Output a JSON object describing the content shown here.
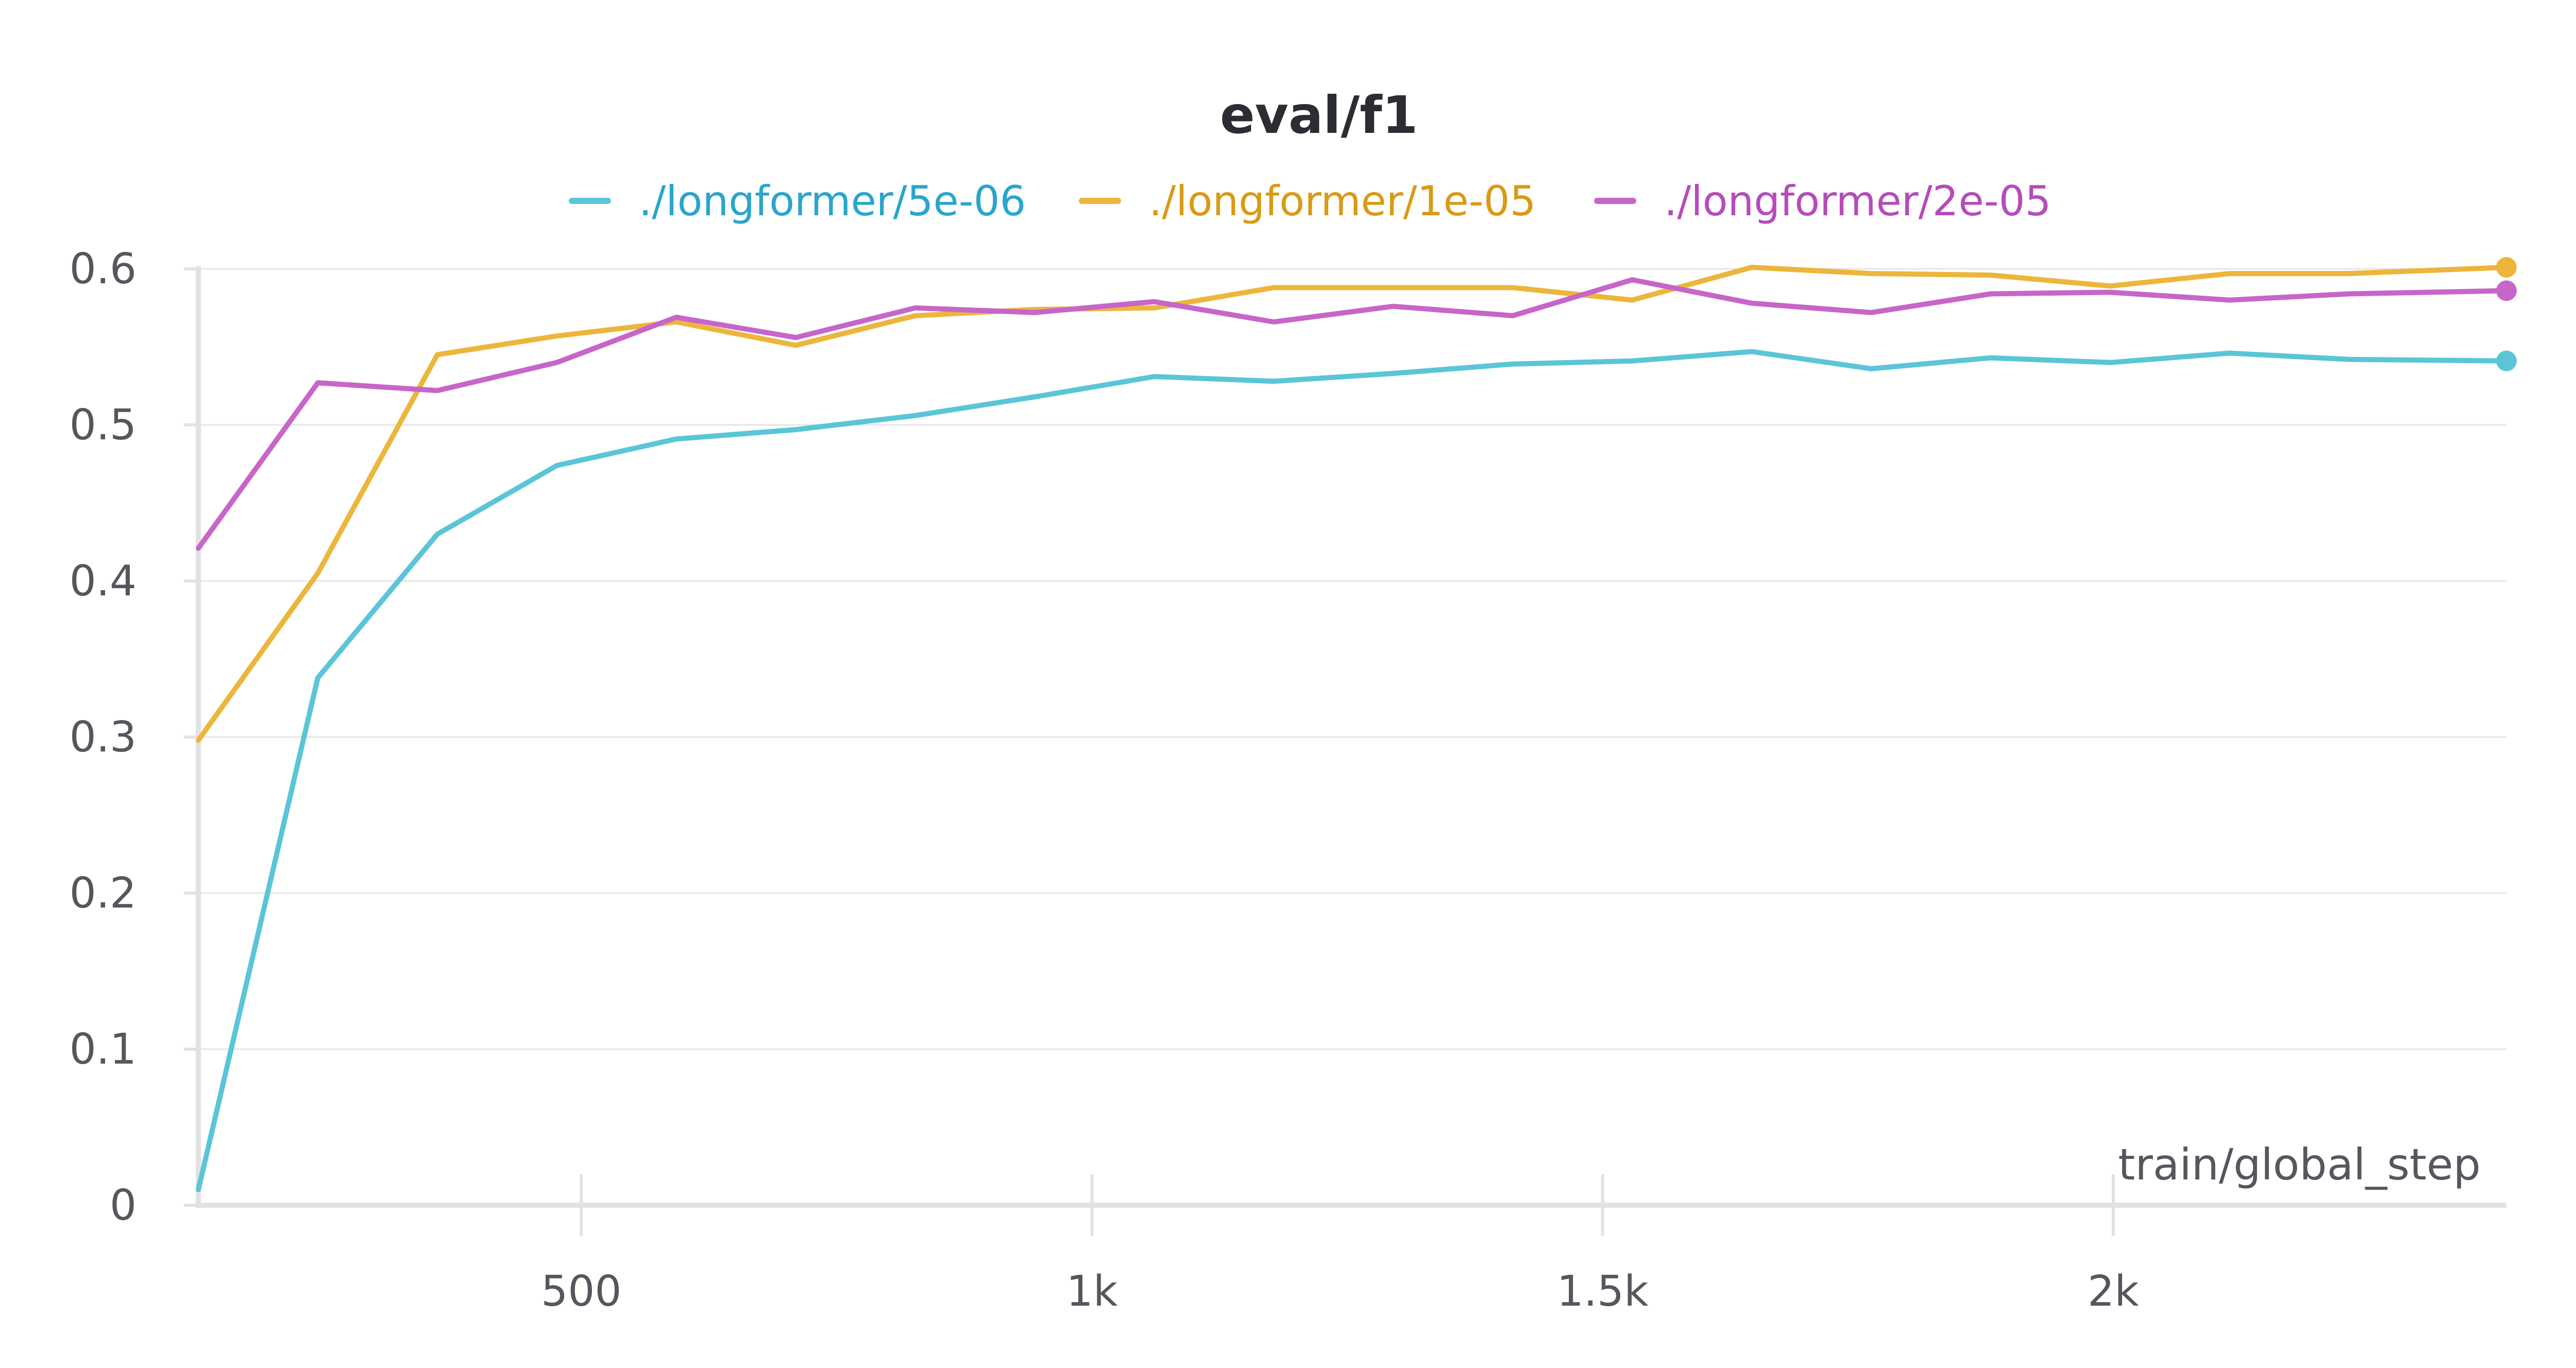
{
  "chart_data": {
    "type": "line",
    "title": "eval/f1",
    "xlabel": "train/global_step",
    "ylabel": "",
    "xlim": [
      125,
      2385
    ],
    "ylim": [
      0,
      0.6
    ],
    "x_ticks": [
      500,
      1000,
      1500,
      2000
    ],
    "x_tick_labels": [
      "500",
      "1k",
      "1.5k",
      "2k"
    ],
    "y_ticks": [
      0,
      0.1,
      0.2,
      0.3,
      0.4,
      0.5,
      0.6
    ],
    "y_tick_labels": [
      "0",
      "0.1",
      "0.2",
      "0.3",
      "0.4",
      "0.5",
      "0.6"
    ],
    "grid": true,
    "legend_position": "top-center",
    "x": [
      125,
      242,
      359,
      476,
      593,
      710,
      827,
      944,
      1061,
      1178,
      1295,
      1412,
      1529,
      1646,
      1763,
      1880,
      1997,
      2114,
      2231,
      2385
    ],
    "series": [
      {
        "name": "./longformer/5e-06",
        "color": "#5bc5d8",
        "label_color": "#2aa5cc",
        "values": [
          0.01,
          0.338,
          0.43,
          0.474,
          0.491,
          0.497,
          0.506,
          0.518,
          0.531,
          0.528,
          0.533,
          0.539,
          0.541,
          0.547,
          0.536,
          0.543,
          0.54,
          0.546,
          0.542,
          0.541
        ]
      },
      {
        "name": "./longformer/1e-05",
        "color": "#ecb63c",
        "label_color": "#d99a16",
        "values": [
          0.298,
          0.405,
          0.545,
          0.557,
          0.566,
          0.551,
          0.57,
          0.574,
          0.575,
          0.588,
          0.588,
          0.588,
          0.58,
          0.601,
          0.597,
          0.596,
          0.589,
          0.597,
          0.597,
          0.601
        ]
      },
      {
        "name": "./longformer/2e-05",
        "color": "#c765c9",
        "label_color": "#b54cba",
        "values": [
          0.421,
          0.527,
          0.522,
          0.54,
          0.569,
          0.556,
          0.575,
          0.572,
          0.579,
          0.566,
          0.576,
          0.57,
          0.593,
          0.578,
          0.572,
          0.584,
          0.585,
          0.58,
          0.584,
          0.586
        ]
      }
    ]
  }
}
